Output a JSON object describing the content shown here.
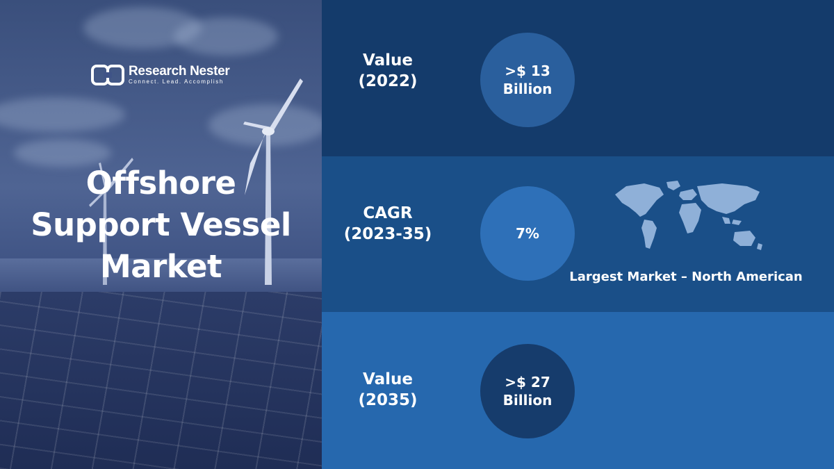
{
  "brand": {
    "name": "Research Nester",
    "tagline": "Connect. Lead. Accomplish"
  },
  "hero": {
    "title_lines": [
      "Offshore",
      "Support Vessel",
      "Market"
    ]
  },
  "stats": [
    {
      "label_lines": [
        "Value",
        "(2022)"
      ],
      "value_lines": [
        ">$ 13",
        "Billion"
      ]
    },
    {
      "label_lines": [
        "CAGR",
        "(2023-35)"
      ],
      "value_lines": [
        "7%"
      ]
    },
    {
      "label_lines": [
        "Value",
        "(2035)"
      ],
      "value_lines": [
        ">$ 27",
        "Billion"
      ]
    }
  ],
  "largest_market": {
    "text": "Largest Market – North American"
  },
  "colors": {
    "band_top": "#143b6b",
    "band_middle": "#1a4f88",
    "band_bottom": "#2668ae",
    "circle_top": "#2a5f9d",
    "circle_middle": "#2e70b8",
    "circle_bottom": "#163c6c"
  },
  "icons": [
    "research-nester-logo-icon",
    "world-map-icon",
    "wind-turbine-icon",
    "solar-panel-icon"
  ]
}
